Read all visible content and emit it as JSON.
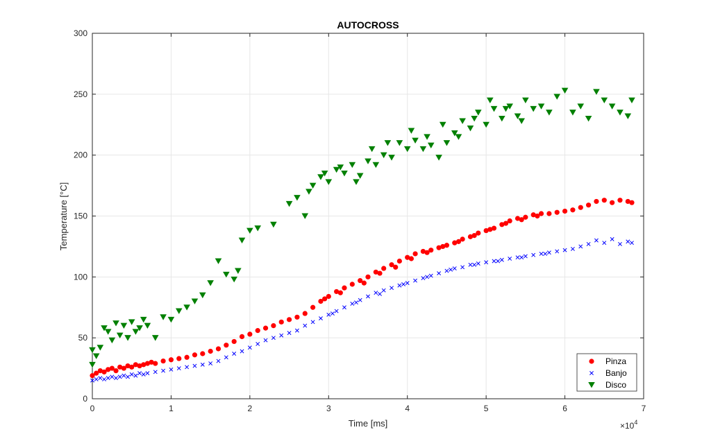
{
  "chart_data": {
    "type": "scatter",
    "title": "AUTOCROSS",
    "xlabel": "Time [ms]",
    "ylabel": "Temperature [°C]",
    "x_exponent_label": "×10",
    "x_exponent_power": "4",
    "x_scale": 10000,
    "xlim": [
      0,
      70000
    ],
    "ylim": [
      0,
      300
    ],
    "x_ticks": [
      0,
      10000,
      20000,
      30000,
      40000,
      50000,
      60000,
      70000
    ],
    "x_tick_labels": [
      "0",
      "1",
      "2",
      "3",
      "4",
      "5",
      "6",
      "7"
    ],
    "y_ticks": [
      0,
      50,
      100,
      150,
      200,
      250,
      300
    ],
    "y_tick_labels": [
      "0",
      "50",
      "100",
      "150",
      "200",
      "250",
      "300"
    ],
    "grid": true,
    "legend_position": "bottom-right",
    "series": [
      {
        "name": "Pinza",
        "marker": "circle",
        "color": "#ff0000",
        "points": [
          [
            0,
            19
          ],
          [
            500,
            21
          ],
          [
            1000,
            23
          ],
          [
            1500,
            22
          ],
          [
            2000,
            24
          ],
          [
            2500,
            25
          ],
          [
            3000,
            23
          ],
          [
            3500,
            26
          ],
          [
            4000,
            25
          ],
          [
            4500,
            27
          ],
          [
            5000,
            26
          ],
          [
            5500,
            28
          ],
          [
            6000,
            27
          ],
          [
            6500,
            28
          ],
          [
            7000,
            29
          ],
          [
            7500,
            30
          ],
          [
            8000,
            29
          ],
          [
            9000,
            31
          ],
          [
            10000,
            32
          ],
          [
            11000,
            33
          ],
          [
            12000,
            34
          ],
          [
            13000,
            36
          ],
          [
            14000,
            37
          ],
          [
            15000,
            39
          ],
          [
            16000,
            41
          ],
          [
            17000,
            44
          ],
          [
            18000,
            47
          ],
          [
            19000,
            51
          ],
          [
            20000,
            53
          ],
          [
            21000,
            56
          ],
          [
            22000,
            58
          ],
          [
            23000,
            60
          ],
          [
            24000,
            63
          ],
          [
            25000,
            65
          ],
          [
            26000,
            67
          ],
          [
            27000,
            70
          ],
          [
            28000,
            75
          ],
          [
            29000,
            80
          ],
          [
            30000,
            84
          ],
          [
            31000,
            88
          ],
          [
            32000,
            91
          ],
          [
            33000,
            94
          ],
          [
            34000,
            97
          ],
          [
            35000,
            100
          ],
          [
            36000,
            104
          ],
          [
            37000,
            107
          ],
          [
            38000,
            110
          ],
          [
            39000,
            113
          ],
          [
            40000,
            116
          ],
          [
            41000,
            119
          ],
          [
            42000,
            121
          ],
          [
            43000,
            122
          ],
          [
            44000,
            124
          ],
          [
            45000,
            126
          ],
          [
            46000,
            128
          ],
          [
            47000,
            131
          ],
          [
            48000,
            133
          ],
          [
            49000,
            136
          ],
          [
            50000,
            138
          ],
          [
            51000,
            140
          ],
          [
            52000,
            143
          ],
          [
            53000,
            146
          ],
          [
            54000,
            148
          ],
          [
            55000,
            149
          ],
          [
            56000,
            151
          ],
          [
            57000,
            152
          ],
          [
            58000,
            152
          ],
          [
            59000,
            153
          ],
          [
            60000,
            154
          ],
          [
            61000,
            155
          ],
          [
            62000,
            157
          ],
          [
            63000,
            159
          ],
          [
            64000,
            162
          ],
          [
            65000,
            163
          ],
          [
            66000,
            161
          ],
          [
            67000,
            163
          ],
          [
            68000,
            162
          ],
          [
            68500,
            161
          ],
          [
            29500,
            82
          ],
          [
            31500,
            87
          ],
          [
            34500,
            95
          ],
          [
            36500,
            103
          ],
          [
            38500,
            108
          ],
          [
            40500,
            115
          ],
          [
            42500,
            120
          ],
          [
            44500,
            125
          ],
          [
            46500,
            129
          ],
          [
            48500,
            134
          ],
          [
            50500,
            139
          ],
          [
            52500,
            144
          ],
          [
            54500,
            147
          ],
          [
            56500,
            150
          ]
        ]
      },
      {
        "name": "Banjo",
        "marker": "x",
        "color": "#0000ff",
        "points": [
          [
            0,
            15
          ],
          [
            500,
            16
          ],
          [
            1000,
            17
          ],
          [
            1500,
            16
          ],
          [
            2000,
            17
          ],
          [
            2500,
            18
          ],
          [
            3000,
            17
          ],
          [
            3500,
            18
          ],
          [
            4000,
            19
          ],
          [
            4500,
            18
          ],
          [
            5000,
            20
          ],
          [
            5500,
            19
          ],
          [
            6000,
            21
          ],
          [
            6500,
            20
          ],
          [
            7000,
            21
          ],
          [
            8000,
            22
          ],
          [
            9000,
            23
          ],
          [
            10000,
            24
          ],
          [
            11000,
            25
          ],
          [
            12000,
            26
          ],
          [
            13000,
            27
          ],
          [
            14000,
            28
          ],
          [
            15000,
            29
          ],
          [
            16000,
            31
          ],
          [
            17000,
            34
          ],
          [
            18000,
            37
          ],
          [
            19000,
            39
          ],
          [
            20000,
            42
          ],
          [
            21000,
            45
          ],
          [
            22000,
            48
          ],
          [
            23000,
            50
          ],
          [
            24000,
            52
          ],
          [
            25000,
            54
          ],
          [
            26000,
            56
          ],
          [
            27000,
            60
          ],
          [
            28000,
            63
          ],
          [
            29000,
            66
          ],
          [
            30000,
            69
          ],
          [
            31000,
            72
          ],
          [
            32000,
            75
          ],
          [
            33000,
            78
          ],
          [
            34000,
            81
          ],
          [
            35000,
            84
          ],
          [
            36000,
            87
          ],
          [
            37000,
            89
          ],
          [
            38000,
            91
          ],
          [
            39000,
            93
          ],
          [
            40000,
            95
          ],
          [
            41000,
            97
          ],
          [
            42000,
            99
          ],
          [
            43000,
            101
          ],
          [
            44000,
            103
          ],
          [
            45000,
            105
          ],
          [
            46000,
            107
          ],
          [
            47000,
            108
          ],
          [
            48000,
            110
          ],
          [
            49000,
            111
          ],
          [
            50000,
            112
          ],
          [
            51000,
            113
          ],
          [
            52000,
            114
          ],
          [
            53000,
            115
          ],
          [
            54000,
            116
          ],
          [
            55000,
            117
          ],
          [
            56000,
            118
          ],
          [
            57000,
            119
          ],
          [
            58000,
            120
          ],
          [
            59000,
            121
          ],
          [
            60000,
            122
          ],
          [
            61000,
            123
          ],
          [
            62000,
            125
          ],
          [
            63000,
            127
          ],
          [
            64000,
            130
          ],
          [
            65000,
            128
          ],
          [
            66000,
            131
          ],
          [
            67000,
            127
          ],
          [
            68000,
            129
          ],
          [
            68500,
            128
          ],
          [
            30500,
            70
          ],
          [
            33500,
            79
          ],
          [
            36500,
            86
          ],
          [
            39500,
            94
          ],
          [
            42500,
            100
          ],
          [
            45500,
            106
          ],
          [
            48500,
            110
          ],
          [
            51500,
            113
          ],
          [
            54500,
            116
          ],
          [
            57500,
            119
          ]
        ]
      },
      {
        "name": "Disco",
        "marker": "triangle-down",
        "color": "#008000",
        "points": [
          [
            0,
            28
          ],
          [
            0,
            40
          ],
          [
            500,
            35
          ],
          [
            1000,
            42
          ],
          [
            1500,
            58
          ],
          [
            2000,
            55
          ],
          [
            2500,
            48
          ],
          [
            3000,
            62
          ],
          [
            3500,
            52
          ],
          [
            4000,
            60
          ],
          [
            4500,
            50
          ],
          [
            5000,
            63
          ],
          [
            5500,
            55
          ],
          [
            6000,
            58
          ],
          [
            6500,
            65
          ],
          [
            7000,
            60
          ],
          [
            8000,
            50
          ],
          [
            9000,
            67
          ],
          [
            10000,
            65
          ],
          [
            11000,
            72
          ],
          [
            12000,
            75
          ],
          [
            13000,
            80
          ],
          [
            14000,
            85
          ],
          [
            15000,
            95
          ],
          [
            16000,
            113
          ],
          [
            17000,
            102
          ],
          [
            18000,
            98
          ],
          [
            18500,
            105
          ],
          [
            19000,
            130
          ],
          [
            20000,
            138
          ],
          [
            21000,
            140
          ],
          [
            23000,
            143
          ],
          [
            25000,
            160
          ],
          [
            26000,
            165
          ],
          [
            27000,
            150
          ],
          [
            28000,
            175
          ],
          [
            29000,
            182
          ],
          [
            30000,
            178
          ],
          [
            31000,
            188
          ],
          [
            32000,
            185
          ],
          [
            33000,
            192
          ],
          [
            34000,
            183
          ],
          [
            35000,
            195
          ],
          [
            36000,
            192
          ],
          [
            37000,
            200
          ],
          [
            38000,
            198
          ],
          [
            39000,
            210
          ],
          [
            40000,
            205
          ],
          [
            41000,
            212
          ],
          [
            42000,
            205
          ],
          [
            43000,
            208
          ],
          [
            44000,
            198
          ],
          [
            45000,
            210
          ],
          [
            46000,
            218
          ],
          [
            47000,
            228
          ],
          [
            48000,
            222
          ],
          [
            49000,
            235
          ],
          [
            50000,
            225
          ],
          [
            51000,
            238
          ],
          [
            52000,
            230
          ],
          [
            53000,
            240
          ],
          [
            54000,
            232
          ],
          [
            55000,
            245
          ],
          [
            56000,
            238
          ],
          [
            57000,
            240
          ],
          [
            58000,
            235
          ],
          [
            59000,
            248
          ],
          [
            60000,
            253
          ],
          [
            61000,
            235
          ],
          [
            62000,
            240
          ],
          [
            63000,
            230
          ],
          [
            64000,
            252
          ],
          [
            65000,
            245
          ],
          [
            66000,
            240
          ],
          [
            67000,
            235
          ],
          [
            68000,
            232
          ],
          [
            68500,
            245
          ],
          [
            27500,
            170
          ],
          [
            29500,
            185
          ],
          [
            31500,
            190
          ],
          [
            33500,
            178
          ],
          [
            35500,
            205
          ],
          [
            37500,
            210
          ],
          [
            40500,
            220
          ],
          [
            42500,
            215
          ],
          [
            44500,
            225
          ],
          [
            46500,
            215
          ],
          [
            48500,
            230
          ],
          [
            50500,
            245
          ],
          [
            52500,
            238
          ],
          [
            54500,
            228
          ]
        ]
      }
    ]
  }
}
